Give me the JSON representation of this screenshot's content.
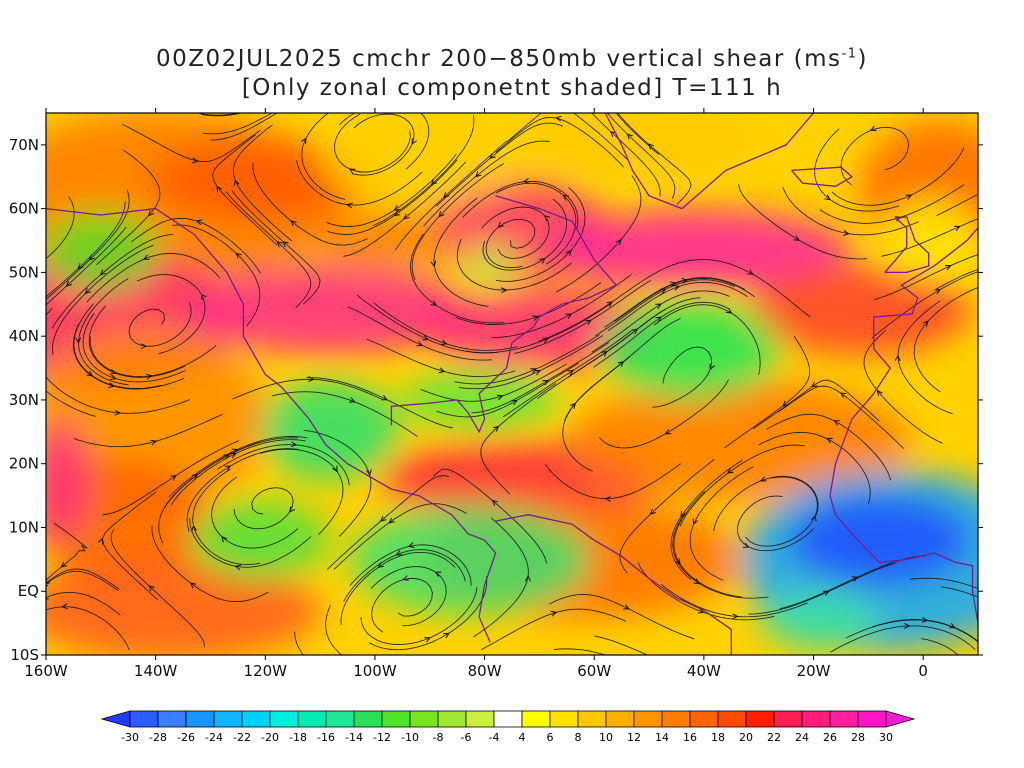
{
  "title": {
    "line1_main": "00Z02JUL2025 cmchr 200−850mb vertical shear (ms",
    "line1_sup": "-1",
    "line1_end": ")",
    "line2": "[Only zonal componetnt shaded] T=111 h"
  },
  "map": {
    "lon_labels": [
      "160W",
      "140W",
      "120W",
      "100W",
      "80W",
      "60W",
      "40W",
      "20W",
      "0"
    ],
    "lon_values": [
      -160,
      -140,
      -120,
      -100,
      -80,
      -60,
      -40,
      -20,
      0
    ],
    "lat_labels": [
      "70N",
      "60N",
      "50N",
      "40N",
      "30N",
      "20N",
      "10N",
      "EQ",
      "10S"
    ],
    "lat_values": [
      70,
      60,
      50,
      40,
      30,
      20,
      10,
      0,
      -10
    ],
    "lon_range": [
      -160,
      10
    ],
    "lat_range": [
      -10,
      75
    ]
  },
  "colorbar": {
    "labels": [
      "-30",
      "-28",
      "-26",
      "-24",
      "-22",
      "-20",
      "-18",
      "-16",
      "-14",
      "-12",
      "-10",
      "-8",
      "-6",
      "-4",
      "4",
      "6",
      "8",
      "10",
      "12",
      "14",
      "16",
      "18",
      "20",
      "22",
      "24",
      "26",
      "28",
      "30"
    ],
    "colors": [
      "#1e3cff",
      "#2b5cff",
      "#3a7dff",
      "#1896ff",
      "#10b4ff",
      "#00d2ff",
      "#00f0e0",
      "#00ecb4",
      "#1ee896",
      "#28e05a",
      "#50e628",
      "#78e61e",
      "#a0e632",
      "#c8f03c",
      "#ffffff",
      "#ffff00",
      "#ffe100",
      "#ffc800",
      "#ffaf00",
      "#ff9600",
      "#ff7d00",
      "#ff6400",
      "#ff4b00",
      "#ff1e00",
      "#ff1e50",
      "#ff1e78",
      "#ff1ea0",
      "#ff14c8",
      "#f01ed2"
    ]
  }
}
